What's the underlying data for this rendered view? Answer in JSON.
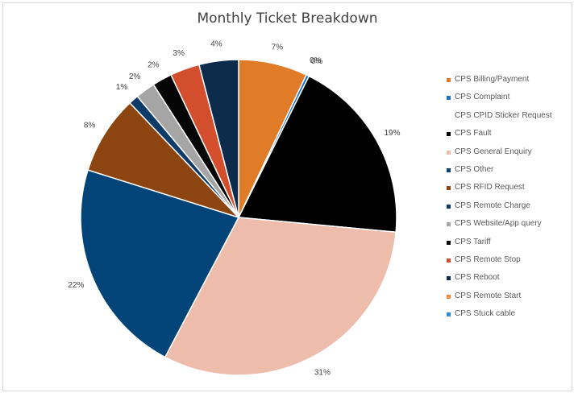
{
  "chart_data": {
    "type": "pie",
    "title": "Monthly Ticket Breakdown",
    "legend_position": "right",
    "slices": [
      {
        "name": "CPS Billing/Payment",
        "value": 7,
        "label": "7%",
        "color": "#e07b28"
      },
      {
        "name": "CPS Complaint",
        "value": 0.3,
        "label": "0%",
        "color": "#1a73c8"
      },
      {
        "name": "CPS CPID Sticker Request",
        "value": 0,
        "label": "0%",
        "color": "#ffffff"
      },
      {
        "name": "CPS Fault",
        "value": 19,
        "label": "19%",
        "color": "#000000"
      },
      {
        "name": "CPS General Enquiry",
        "value": 31,
        "label": "31%",
        "color": "#eebcab"
      },
      {
        "name": "CPS Other",
        "value": 22,
        "label": "22%",
        "color": "#024478"
      },
      {
        "name": "CPS RFID Request",
        "value": 8,
        "label": "8%",
        "color": "#8c4510"
      },
      {
        "name": "CPS Remote Charge",
        "value": 1,
        "label": "1%",
        "color": "#0c3b68"
      },
      {
        "name": "CPS Website/App query",
        "value": 2,
        "label": "2%",
        "color": "#a5a5a5"
      },
      {
        "name": "CPS Tariff",
        "value": 2,
        "label": "2%",
        "color": "#050505"
      },
      {
        "name": "CPS Remote Stop",
        "value": 3,
        "label": "3%",
        "color": "#d24e2c"
      },
      {
        "name": "CPS Reboot",
        "value": 4,
        "label": "4%",
        "color": "#0d2b4a"
      },
      {
        "name": "CPS Remote Start",
        "value": 0,
        "label": "",
        "color": "#f08a3a"
      },
      {
        "name": "CPS Stuck cable",
        "value": 0,
        "label": "",
        "color": "#2e8fe0"
      }
    ]
  }
}
